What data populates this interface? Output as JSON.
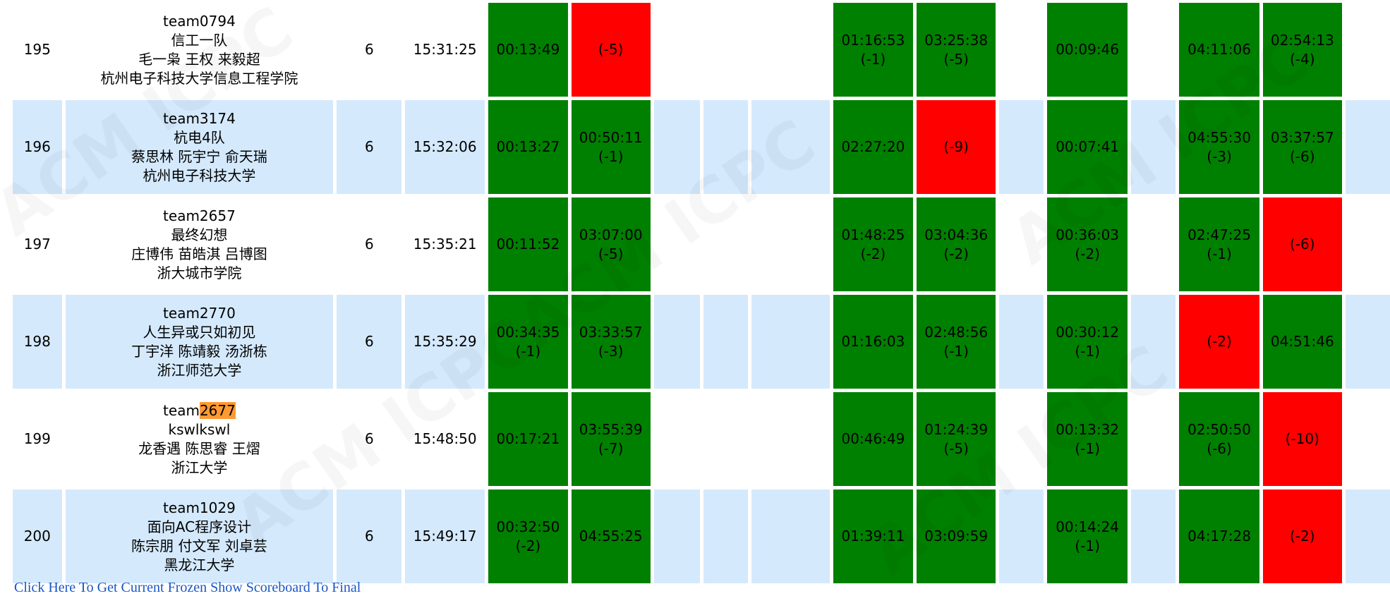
{
  "highlight_color": "#ff9933",
  "colors": {
    "solved": "#008000",
    "failed": "#ff0000",
    "row_alt": "#d4e9fc"
  },
  "highlight_term": "2677",
  "watermark": "ACM ICPC",
  "rows": [
    {
      "rank": "195",
      "team_id": "team0794",
      "team_name": "信工一队",
      "members": "毛一枭 王权 来毅超",
      "school": "杭州电子科技大学信息工程学院",
      "solved": "6",
      "penalty": "15:31:25",
      "problems": [
        [
          "ac",
          "00:13:49",
          ""
        ],
        [
          "wa",
          "",
          "(-5)"
        ],
        null,
        null,
        null,
        [
          "ac",
          "01:16:53",
          "(-1)"
        ],
        [
          "ac",
          "03:25:38",
          "(-5)"
        ],
        null,
        [
          "ac",
          "00:09:46",
          ""
        ],
        null,
        [
          "ac",
          "04:11:06",
          ""
        ],
        [
          "ac",
          "02:54:13",
          "(-4)"
        ],
        null
      ]
    },
    {
      "rank": "196",
      "team_id": "team3174",
      "team_name": "杭电4队",
      "members": "蔡思林 阮宇宁 俞天瑞",
      "school": "杭州电子科技大学",
      "solved": "6",
      "penalty": "15:32:06",
      "problems": [
        [
          "ac",
          "00:13:27",
          ""
        ],
        [
          "ac",
          "00:50:11",
          "(-1)"
        ],
        null,
        null,
        null,
        [
          "ac",
          "02:27:20",
          ""
        ],
        [
          "wa",
          "",
          "(-9)"
        ],
        null,
        [
          "ac",
          "00:07:41",
          ""
        ],
        null,
        [
          "ac",
          "04:55:30",
          "(-3)"
        ],
        [
          "ac",
          "03:37:57",
          "(-6)"
        ],
        null
      ]
    },
    {
      "rank": "197",
      "team_id": "team2657",
      "team_name": "最终幻想",
      "members": "庄博伟 苗皓淇 吕博图",
      "school": "浙大城市学院",
      "solved": "6",
      "penalty": "15:35:21",
      "problems": [
        [
          "ac",
          "00:11:52",
          ""
        ],
        [
          "ac",
          "03:07:00",
          "(-5)"
        ],
        null,
        null,
        null,
        [
          "ac",
          "01:48:25",
          "(-2)"
        ],
        [
          "ac",
          "03:04:36",
          "(-2)"
        ],
        null,
        [
          "ac",
          "00:36:03",
          "(-2)"
        ],
        null,
        [
          "ac",
          "02:47:25",
          "(-1)"
        ],
        [
          "wa",
          "",
          "(-6)"
        ],
        null
      ]
    },
    {
      "rank": "198",
      "team_id": "team2770",
      "team_name": "人生异或只如初见",
      "members": "丁宇洋 陈靖毅 汤浙栋",
      "school": "浙江师范大学",
      "solved": "6",
      "penalty": "15:35:29",
      "problems": [
        [
          "ac",
          "00:34:35",
          "(-1)"
        ],
        [
          "ac",
          "03:33:57",
          "(-3)"
        ],
        null,
        null,
        null,
        [
          "ac",
          "01:16:03",
          ""
        ],
        [
          "ac",
          "02:48:56",
          "(-1)"
        ],
        null,
        [
          "ac",
          "00:30:12",
          "(-1)"
        ],
        null,
        [
          "wa",
          "",
          "(-2)"
        ],
        [
          "ac",
          "04:51:46",
          ""
        ],
        null
      ]
    },
    {
      "rank": "199",
      "team_id": "team2677",
      "team_name": "kswlkswl",
      "members": "龙香遇 陈思睿 王熠",
      "school": "浙江大学",
      "solved": "6",
      "penalty": "15:48:50",
      "problems": [
        [
          "ac",
          "00:17:21",
          ""
        ],
        [
          "ac",
          "03:55:39",
          "(-7)"
        ],
        null,
        null,
        null,
        [
          "ac",
          "00:46:49",
          ""
        ],
        [
          "ac",
          "01:24:39",
          "(-5)"
        ],
        null,
        [
          "ac",
          "00:13:32",
          "(-1)"
        ],
        null,
        [
          "ac",
          "02:50:50",
          "(-6)"
        ],
        [
          "wa",
          "",
          "(-10)"
        ],
        null
      ]
    },
    {
      "rank": "200",
      "team_id": "team1029",
      "team_name": "面向AC程序设计",
      "members": "陈宗朋 付文军 刘卓芸",
      "school": "黑龙江大学",
      "solved": "6",
      "penalty": "15:49:17",
      "problems": [
        [
          "ac",
          "00:32:50",
          "(-2)"
        ],
        [
          "ac",
          "04:55:25",
          ""
        ],
        null,
        null,
        null,
        [
          "ac",
          "01:39:11",
          ""
        ],
        [
          "ac",
          "03:09:59",
          ""
        ],
        null,
        [
          "ac",
          "00:14:24",
          "(-1)"
        ],
        null,
        [
          "ac",
          "04:17:28",
          ""
        ],
        [
          "wa",
          "",
          "(-2)"
        ],
        null
      ]
    }
  ],
  "footer_link": "Click Here To Get Current Frozen Show Scoreboard To Final"
}
